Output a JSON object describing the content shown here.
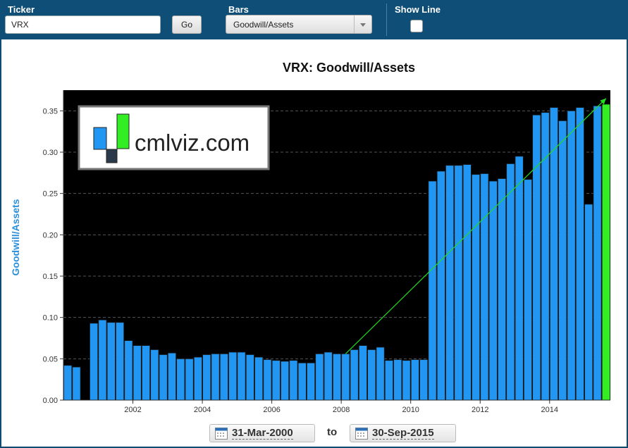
{
  "controls": {
    "ticker_label": "Ticker",
    "ticker_value": "VRX",
    "go_label": "Go",
    "bars_label": "Bars",
    "bars_value": "Goodwill/Assets",
    "show_line_label": "Show Line",
    "show_line_checked": false
  },
  "logo": {
    "text": "cmlviz.com"
  },
  "date_range": {
    "start": "31-Mar-2000",
    "to_label": "to",
    "end": "30-Sep-2015"
  },
  "colors": {
    "bar": "#2196f3",
    "last_bar": "#33ee22",
    "trend_line": "#22dd22",
    "plot_bg": "#000000",
    "axis_label": "#2a8fdb"
  },
  "chart_data": {
    "type": "bar",
    "title": "VRX: Goodwill/Assets",
    "xlabel": "",
    "ylabel": "Goodwill/Assets",
    "ylim": [
      0,
      0.375
    ],
    "yticks": [
      "0.00",
      "0.05",
      "0.10",
      "0.15",
      "0.20",
      "0.25",
      "0.30",
      "0.35"
    ],
    "xticks": [
      "2002",
      "2004",
      "2006",
      "2008",
      "2010",
      "2012",
      "2014"
    ],
    "grid": "horizontal dashed",
    "categories": [
      "2000-Q1",
      "2000-Q2",
      "2000-Q3",
      "2000-Q4",
      "2001-Q1",
      "2001-Q2",
      "2001-Q3",
      "2001-Q4",
      "2002-Q1",
      "2002-Q2",
      "2002-Q3",
      "2002-Q4",
      "2003-Q1",
      "2003-Q2",
      "2003-Q3",
      "2003-Q4",
      "2004-Q1",
      "2004-Q2",
      "2004-Q3",
      "2004-Q4",
      "2005-Q1",
      "2005-Q2",
      "2005-Q3",
      "2005-Q4",
      "2006-Q1",
      "2006-Q2",
      "2006-Q3",
      "2006-Q4",
      "2007-Q1",
      "2007-Q2",
      "2007-Q3",
      "2007-Q4",
      "2008-Q1",
      "2008-Q2",
      "2008-Q3",
      "2008-Q4",
      "2009-Q1",
      "2009-Q2",
      "2009-Q3",
      "2009-Q4",
      "2010-Q1",
      "2010-Q2",
      "2010-Q3",
      "2010-Q4",
      "2011-Q1",
      "2011-Q2",
      "2011-Q3",
      "2011-Q4",
      "2012-Q1",
      "2012-Q2",
      "2012-Q3",
      "2012-Q4",
      "2013-Q1",
      "2013-Q2",
      "2013-Q3",
      "2013-Q4",
      "2014-Q1",
      "2014-Q2",
      "2014-Q3",
      "2014-Q4",
      "2015-Q1",
      "2015-Q2",
      "2015-Q3"
    ],
    "values": [
      0.042,
      0.04,
      0,
      0.093,
      0.097,
      0.094,
      0.094,
      0.072,
      0.066,
      0.066,
      0.061,
      0.055,
      0.057,
      0.05,
      0.05,
      0.052,
      0.055,
      0.056,
      0.056,
      0.058,
      0.058,
      0.055,
      0.052,
      0.049,
      0.048,
      0.047,
      0.048,
      0.045,
      0.045,
      0.056,
      0.058,
      0.056,
      0.056,
      0.061,
      0.066,
      0.061,
      0.064,
      0.048,
      0.049,
      0.048,
      0.049,
      0.049,
      0.265,
      0.277,
      0.284,
      0.284,
      0.285,
      0.273,
      0.274,
      0.265,
      0.268,
      0.286,
      0.295,
      0.267,
      0.345,
      0.348,
      0.354,
      0.338,
      0.35,
      0.354,
      0.237,
      0.356,
      0.358
    ],
    "trend_line": {
      "from_index": 32,
      "from_value": 0.056,
      "to_index": 62,
      "to_value": 0.365
    }
  }
}
